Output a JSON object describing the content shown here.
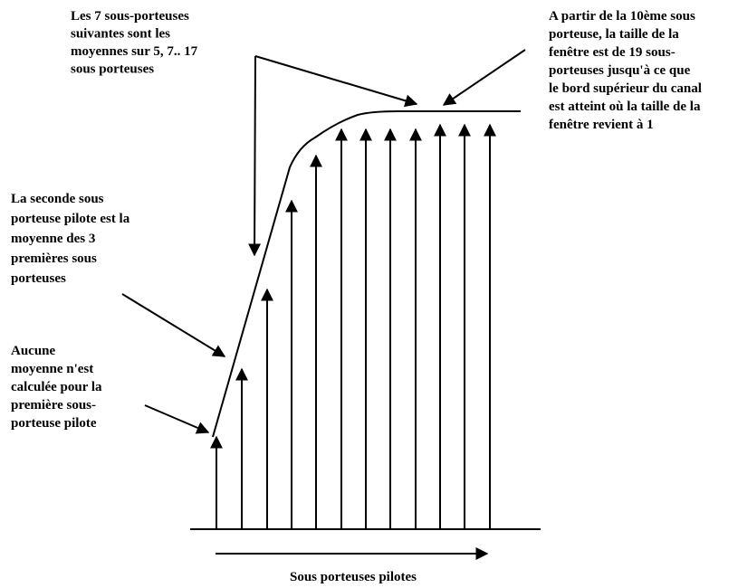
{
  "annotations": [
    {
      "lines": [
        "Les 7 sous-porteuses",
        "suivantes sont les",
        "moyennes sur 5, 7.. 17",
        "sous porteuses"
      ]
    },
    {
      "lines": [
        "A partir de la 10ème sous",
        "porteuse, la taille de la",
        "fenêtre est de 19 sous-",
        "porteuses jusqu'à ce que",
        "le bord supérieur du canal",
        "est atteint où la taille de la",
        "fenêtre revient à 1"
      ]
    },
    {
      "lines": [
        "La seconde sous",
        "porteuse pilote est la",
        "moyenne des 3",
        "premières sous",
        "porteuses"
      ]
    },
    {
      "lines": [
        "Aucune",
        "moyenne n'est",
        "calculée pour la",
        "première sous-",
        "porteuse pilote"
      ]
    }
  ],
  "axis_label": "Sous porteuses pilotes"
}
